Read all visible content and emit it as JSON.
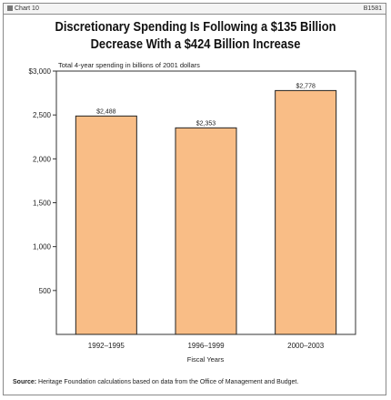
{
  "header": {
    "chart_label": "Chart 10",
    "chart_id": "B1581"
  },
  "chart_data": {
    "type": "bar",
    "title": "Discretionary Spending Is Following a $135 Billion Decrease With a $424 Billion Increase",
    "title_lines": [
      "Discretionary Spending Is Following a $135 Billion",
      "Decrease With a $424 Billion Increase"
    ],
    "subtitle": "Total 4-year spending in billions of 2001 dollars",
    "categories": [
      "1992–1995",
      "1996–1999",
      "2000–2003"
    ],
    "values": [
      2488,
      2353,
      2778
    ],
    "value_labels": [
      "$2,488",
      "$2,353",
      "$2,778"
    ],
    "xlabel": "Fiscal Years",
    "ylabel": "",
    "ylim": [
      0,
      3000
    ],
    "y_ticks": [
      500,
      1000,
      1500,
      2000,
      2500,
      3000
    ],
    "y_tick_labels": [
      "500",
      "1,000",
      "1,500",
      "2,000",
      "2,500",
      "$3,000"
    ],
    "grid": false,
    "bar_color": "#f9bd86",
    "bar_edge_color": "#222222"
  },
  "source": {
    "label": "Source:",
    "text": "Heritage Foundation calculations based on data from the Office of Management and Budget."
  }
}
